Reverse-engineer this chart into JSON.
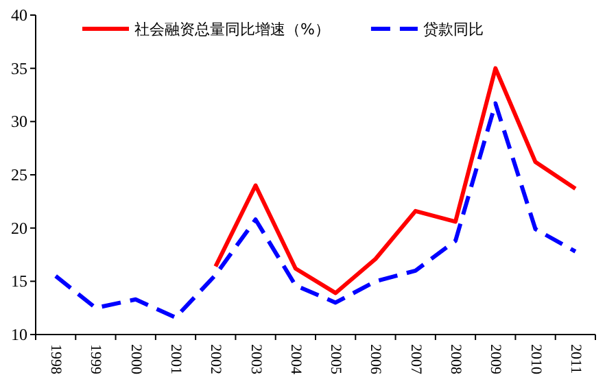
{
  "chart_data": {
    "type": "line",
    "categories": [
      "1998",
      "1999",
      "2000",
      "2001",
      "2002",
      "2003",
      "2004",
      "2005",
      "2006",
      "2007",
      "2008",
      "2009",
      "2010",
      "2011"
    ],
    "series": [
      {
        "name": "社会融资总量同比增速（%）",
        "color": "#ff0000",
        "line_style": "solid",
        "values": [
          null,
          null,
          null,
          null,
          16.4,
          24.0,
          16.2,
          13.9,
          17.1,
          21.6,
          20.6,
          35.0,
          26.2,
          23.7
        ]
      },
      {
        "name": "贷款同比",
        "color": "#0000ff",
        "line_style": "dashed",
        "values": [
          15.5,
          12.5,
          13.3,
          11.6,
          15.6,
          20.8,
          14.6,
          13.0,
          15.0,
          16.0,
          18.8,
          31.7,
          19.9,
          17.8
        ]
      }
    ],
    "ylim": [
      10,
      40
    ],
    "yticks": [
      10,
      15,
      20,
      25,
      30,
      35,
      40
    ],
    "legend": "top",
    "grid": false,
    "marker": "none"
  }
}
